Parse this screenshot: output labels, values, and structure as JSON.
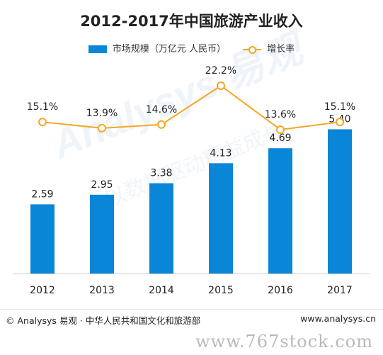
{
  "chart_data": {
    "type": "bar",
    "title": "2012-2017年中国旅游产业收入",
    "categories": [
      "2012",
      "2013",
      "2014",
      "2015",
      "2016",
      "2017"
    ],
    "series": [
      {
        "name": "市场规模（万亿元 人民币）",
        "type": "bar",
        "axis": "left",
        "values": [
          2.59,
          2.95,
          3.38,
          4.13,
          4.69,
          5.4
        ],
        "labels": [
          "2.59",
          "2.95",
          "3.38",
          "4.13",
          "4.69",
          "5.40"
        ],
        "color": "#0a86d8"
      },
      {
        "name": "增长率",
        "type": "line",
        "axis": "right",
        "values": [
          15.1,
          13.9,
          14.6,
          22.2,
          13.6,
          15.1
        ],
        "labels": [
          "15.1%",
          "13.9%",
          "14.6%",
          "22.2%",
          "13.6%",
          "15.1%"
        ],
        "color": "#f5a623"
      }
    ],
    "ylim": [
      0,
      6.5
    ],
    "y2lim": [
      -10,
      25
    ],
    "grid": false,
    "legend": "top-center"
  },
  "legend": {
    "bar_label": "市场规模（万亿元 人民币）",
    "line_label": "增长率"
  },
  "footer": {
    "source": "© Analysys 易观 · 中华人民共和国文化和旅游部",
    "site": "www.analysys.cn"
  },
  "watermark": {
    "logo": "Analysys 易观",
    "sub": "以数据驱动精益成长",
    "bottom": "www.767stock.com"
  }
}
